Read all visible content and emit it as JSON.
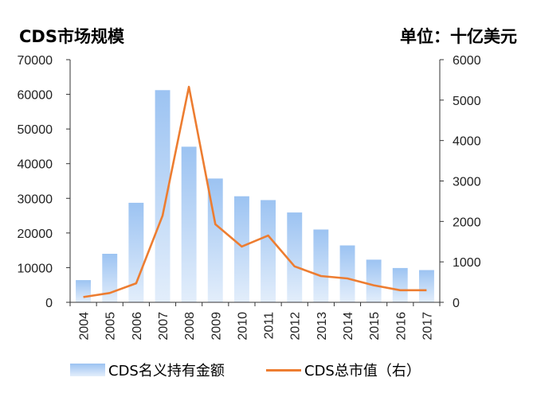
{
  "titles": {
    "left": "CDS市场规模",
    "right": "单位：十亿美元"
  },
  "chart_data": {
    "type": "bar+line",
    "categories": [
      "2004",
      "2005",
      "2006",
      "2007",
      "2008",
      "2009",
      "2010",
      "2011",
      "2012",
      "2013",
      "2014",
      "2015",
      "2016",
      "2017"
    ],
    "series": [
      {
        "name": "CDS名义持有金额",
        "type": "bar",
        "axis": "left",
        "values": [
          6400,
          14000,
          28700,
          61200,
          44900,
          35700,
          30600,
          29500,
          25900,
          21000,
          16400,
          12300,
          9900,
          9300
        ]
      },
      {
        "name": "CDS总市值（右）",
        "type": "line",
        "axis": "right",
        "values": [
          130,
          230,
          470,
          2140,
          5330,
          1930,
          1380,
          1650,
          890,
          650,
          590,
          420,
          300,
          300
        ]
      }
    ],
    "y_left": {
      "min": 0,
      "max": 70000,
      "ticks": [
        "0",
        "10000",
        "20000",
        "30000",
        "40000",
        "50000",
        "60000",
        "70000"
      ]
    },
    "y_right": {
      "min": 0,
      "max": 6000,
      "ticks": [
        "0",
        "1000",
        "2000",
        "3000",
        "4000",
        "5000",
        "6000"
      ]
    },
    "colors": {
      "bar_top": "#9cc3f2",
      "bar_bottom": "#e3eefb",
      "line": "#ed7d31",
      "axis": "#333333"
    },
    "grid": false,
    "legend_position": "bottom"
  }
}
